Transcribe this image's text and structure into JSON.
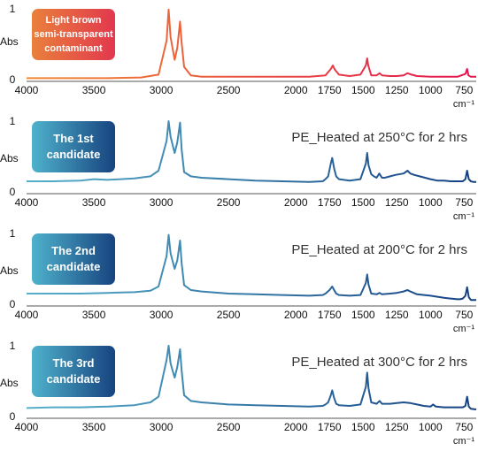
{
  "chart_data": [
    {
      "type": "line",
      "badge": "Light brown\nsemi-transparent\ncontaminant",
      "note": "",
      "ylabel": "Abs",
      "xlabel": "cm⁻¹",
      "xlim": [
        4000,
        660
      ],
      "ylim": [
        0,
        1
      ],
      "x_ticks": [
        4000,
        3500,
        3000,
        2500,
        2000,
        1750,
        1500,
        1250,
        1000,
        750
      ],
      "y_ticks": [
        0,
        1
      ],
      "gradient": [
        "#f08a32",
        "#e3154f"
      ],
      "series": [
        {
          "x": [
            4000,
            3700,
            3400,
            3150,
            3020,
            2960,
            2945,
            2930,
            2900,
            2880,
            2860,
            2848,
            2830,
            2780,
            2700,
            2500,
            2300,
            2100,
            1900,
            1780,
            1740,
            1725,
            1710,
            1680,
            1600,
            1520,
            1480,
            1470,
            1462,
            1440,
            1400,
            1377,
            1360,
            1300,
            1250,
            1200,
            1170,
            1140,
            1100,
            1000,
            900,
            800,
            740,
            728,
            718,
            700,
            660
          ],
          "y": [
            0.02,
            0.02,
            0.02,
            0.03,
            0.07,
            0.55,
            0.99,
            0.6,
            0.28,
            0.45,
            0.82,
            0.52,
            0.18,
            0.06,
            0.04,
            0.04,
            0.04,
            0.04,
            0.04,
            0.06,
            0.15,
            0.2,
            0.14,
            0.07,
            0.05,
            0.07,
            0.2,
            0.3,
            0.2,
            0.06,
            0.06,
            0.09,
            0.06,
            0.05,
            0.05,
            0.06,
            0.09,
            0.07,
            0.05,
            0.04,
            0.04,
            0.04,
            0.08,
            0.15,
            0.06,
            0.04,
            0.04
          ]
        }
      ]
    },
    {
      "type": "line",
      "badge": "The 1st\ncandidate",
      "note": "PE_Heated at 250°C for 2 hrs",
      "ylabel": "Abs",
      "xlabel": "cm⁻¹",
      "xlim": [
        4000,
        660
      ],
      "ylim": [
        0,
        1
      ],
      "x_ticks": [
        4000,
        3500,
        3000,
        2500,
        2000,
        1750,
        1500,
        1250,
        1000,
        750
      ],
      "y_ticks": [
        0,
        1
      ],
      "gradient": [
        "#56b0cb",
        "#143f82"
      ],
      "series": [
        {
          "x": [
            4000,
            3800,
            3600,
            3500,
            3400,
            3200,
            3080,
            3020,
            2960,
            2945,
            2930,
            2900,
            2880,
            2860,
            2848,
            2830,
            2780,
            2700,
            2500,
            2300,
            2100,
            1900,
            1800,
            1780,
            1760,
            1740,
            1730,
            1715,
            1700,
            1680,
            1600,
            1520,
            1480,
            1470,
            1460,
            1440,
            1420,
            1400,
            1380,
            1360,
            1340,
            1300,
            1260,
            1200,
            1170,
            1150,
            1120,
            1080,
            1000,
            950,
            900,
            850,
            800,
            780,
            760,
            740,
            728,
            715,
            700,
            680,
            660
          ],
          "y": [
            0.15,
            0.15,
            0.16,
            0.18,
            0.17,
            0.19,
            0.22,
            0.3,
            0.72,
            1.0,
            0.78,
            0.55,
            0.7,
            0.98,
            0.6,
            0.28,
            0.22,
            0.2,
            0.18,
            0.16,
            0.15,
            0.14,
            0.15,
            0.18,
            0.22,
            0.4,
            0.48,
            0.33,
            0.22,
            0.18,
            0.16,
            0.18,
            0.4,
            0.55,
            0.38,
            0.25,
            0.22,
            0.2,
            0.26,
            0.2,
            0.2,
            0.22,
            0.24,
            0.26,
            0.3,
            0.26,
            0.24,
            0.22,
            0.18,
            0.16,
            0.16,
            0.15,
            0.15,
            0.15,
            0.15,
            0.18,
            0.3,
            0.18,
            0.15,
            0.14,
            0.14
          ]
        }
      ]
    },
    {
      "type": "line",
      "badge": "The 2nd\ncandidate",
      "note": "PE_Heated at 200°C for 2 hrs",
      "ylabel": "Abs",
      "xlabel": "cm⁻¹",
      "xlim": [
        4000,
        660
      ],
      "ylim": [
        0,
        1
      ],
      "x_ticks": [
        4000,
        3500,
        3000,
        2500,
        2000,
        1750,
        1500,
        1250,
        1000,
        750
      ],
      "y_ticks": [
        0,
        1
      ],
      "gradient": [
        "#56b0cb",
        "#143f82"
      ],
      "series": [
        {
          "x": [
            4000,
            3800,
            3600,
            3400,
            3200,
            3080,
            3020,
            2960,
            2945,
            2930,
            2900,
            2880,
            2860,
            2848,
            2830,
            2780,
            2700,
            2500,
            2300,
            2100,
            1900,
            1800,
            1780,
            1750,
            1730,
            1715,
            1700,
            1680,
            1600,
            1520,
            1480,
            1470,
            1460,
            1440,
            1400,
            1377,
            1360,
            1300,
            1250,
            1200,
            1170,
            1150,
            1100,
            1000,
            900,
            800,
            780,
            760,
            740,
            728,
            715,
            700,
            660
          ],
          "y": [
            0.15,
            0.15,
            0.15,
            0.16,
            0.17,
            0.19,
            0.25,
            0.68,
            0.98,
            0.72,
            0.5,
            0.62,
            0.9,
            0.58,
            0.27,
            0.2,
            0.18,
            0.15,
            0.14,
            0.13,
            0.12,
            0.13,
            0.15,
            0.2,
            0.25,
            0.2,
            0.15,
            0.13,
            0.12,
            0.13,
            0.3,
            0.42,
            0.28,
            0.15,
            0.14,
            0.16,
            0.14,
            0.15,
            0.16,
            0.18,
            0.2,
            0.18,
            0.14,
            0.12,
            0.09,
            0.07,
            0.07,
            0.08,
            0.12,
            0.24,
            0.1,
            0.06,
            0.06
          ]
        }
      ]
    },
    {
      "type": "line",
      "badge": "The 3rd\ncandidate",
      "note": "PE_Heated at 300°C for 2 hrs",
      "ylabel": "Abs",
      "xlabel": "cm⁻¹",
      "xlim": [
        4000,
        660
      ],
      "ylim": [
        0,
        1
      ],
      "x_ticks": [
        4000,
        3500,
        3000,
        2500,
        2000,
        1750,
        1500,
        1250,
        1000,
        750
      ],
      "y_ticks": [
        0,
        1
      ],
      "gradient": [
        "#56b0cb",
        "#143f82"
      ],
      "series": [
        {
          "x": [
            4000,
            3800,
            3600,
            3400,
            3200,
            3080,
            3020,
            2960,
            2945,
            2930,
            2900,
            2880,
            2860,
            2848,
            2830,
            2780,
            2700,
            2500,
            2300,
            2100,
            1900,
            1800,
            1780,
            1760,
            1740,
            1730,
            1715,
            1700,
            1680,
            1600,
            1520,
            1480,
            1470,
            1460,
            1440,
            1400,
            1377,
            1360,
            1300,
            1250,
            1200,
            1150,
            1100,
            1050,
            1000,
            980,
            960,
            900,
            800,
            760,
            740,
            728,
            715,
            700,
            660
          ],
          "y": [
            0.12,
            0.13,
            0.13,
            0.14,
            0.16,
            0.2,
            0.28,
            0.8,
            1.0,
            0.75,
            0.55,
            0.7,
            0.95,
            0.65,
            0.3,
            0.22,
            0.2,
            0.17,
            0.16,
            0.15,
            0.14,
            0.15,
            0.17,
            0.2,
            0.3,
            0.37,
            0.26,
            0.18,
            0.16,
            0.15,
            0.17,
            0.42,
            0.62,
            0.4,
            0.2,
            0.18,
            0.22,
            0.18,
            0.18,
            0.19,
            0.2,
            0.19,
            0.17,
            0.15,
            0.14,
            0.17,
            0.14,
            0.13,
            0.13,
            0.13,
            0.15,
            0.28,
            0.14,
            0.11,
            0.1
          ]
        }
      ]
    }
  ]
}
